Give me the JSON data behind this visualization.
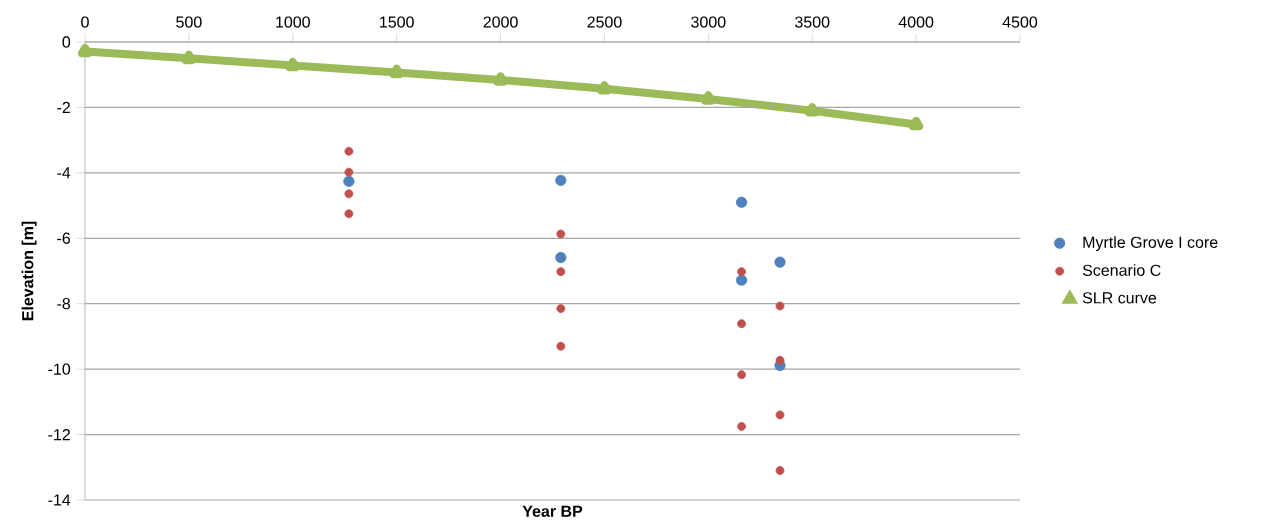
{
  "chart_data": {
    "type": "scatter",
    "xlabel": "Year BP",
    "ylabel": "Elevation [m]",
    "xlim": [
      0,
      4500
    ],
    "xticks": [
      0,
      500,
      1000,
      1500,
      2000,
      2500,
      3000,
      3500,
      4000,
      4500
    ],
    "ylim": [
      -14,
      0
    ],
    "yticks": [
      -14,
      -12,
      -10,
      -8,
      -6,
      -4,
      -2,
      0
    ],
    "grid": "y",
    "legend": "right",
    "series": [
      {
        "name": "Myrtle Grove I core",
        "marker": "circle",
        "color": "#4f81bd",
        "x": [
          1270,
          2290,
          2290,
          3160,
          3160,
          3345,
          3345
        ],
        "values": [
          -4.26,
          -4.23,
          -6.59,
          -4.9,
          -7.28,
          -6.73,
          -9.89
        ]
      },
      {
        "name": "Scenario C",
        "marker": "circle",
        "color": "#c0504d",
        "x": [
          1270,
          1270,
          1270,
          1270,
          2290,
          2290,
          2290,
          2290,
          3160,
          3160,
          3160,
          3160,
          3345,
          3345,
          3345,
          3345
        ],
        "values": [
          -3.34,
          -3.98,
          -4.64,
          -5.25,
          -5.87,
          -7.02,
          -8.15,
          -9.3,
          -7.02,
          -8.61,
          -10.17,
          -11.75,
          -8.07,
          -9.73,
          -11.4,
          -13.1
        ]
      },
      {
        "name": "SLR curve",
        "type": "line",
        "marker": "triangle",
        "color": "#9bbb59",
        "x": [
          0,
          500,
          1000,
          1500,
          2000,
          2500,
          3000,
          3500,
          4000
        ],
        "values": [
          -0.29,
          -0.5,
          -0.72,
          -0.93,
          -1.16,
          -1.43,
          -1.74,
          -2.1,
          -2.52
        ]
      }
    ]
  }
}
